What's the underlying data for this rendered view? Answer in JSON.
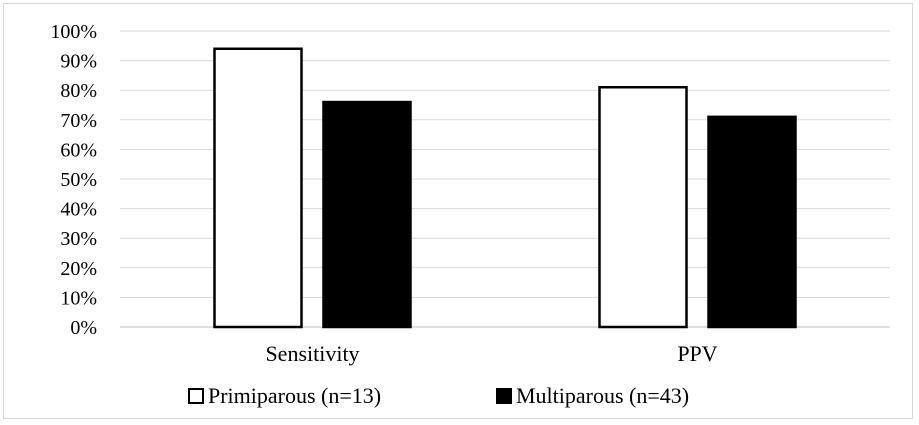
{
  "chart_data": {
    "type": "bar",
    "title": "",
    "xlabel": "",
    "ylabel": "",
    "categories": [
      "Sensitivity",
      "PPV"
    ],
    "series": [
      {
        "name": "Primiparous (n=13)",
        "values": [
          0.94,
          0.81
        ],
        "color": "#ffffff",
        "stroke": "#000000"
      },
      {
        "name": "Multiparous (n=43)",
        "values": [
          0.76,
          0.71
        ],
        "color": "#000000",
        "stroke": "#000000"
      }
    ],
    "ylim": [
      0,
      1
    ],
    "yticks": [
      0,
      0.1,
      0.2,
      0.3,
      0.4,
      0.5,
      0.6,
      0.7,
      0.8,
      0.9,
      1.0
    ],
    "ytick_labels": [
      "0%",
      "10%",
      "20%",
      "30%",
      "40%",
      "50%",
      "60%",
      "70%",
      "80%",
      "90%",
      "100%"
    ],
    "grid": true,
    "legend_position": "bottom",
    "colors": {
      "gridline": "#d9d9d9",
      "axis": "#bfbfbf",
      "frame": "#d9d9d9"
    }
  }
}
